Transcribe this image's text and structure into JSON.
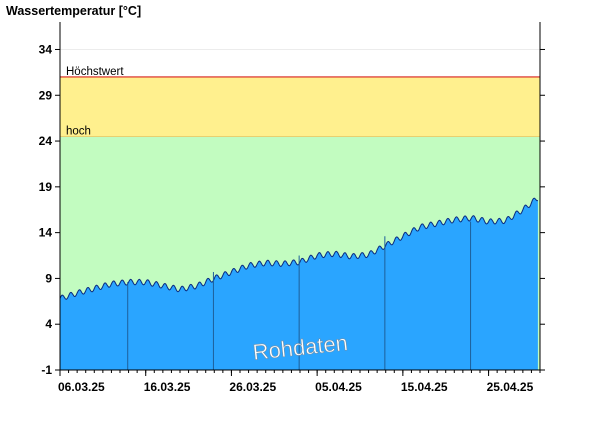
{
  "chart_data": {
    "type": "area",
    "title": "Wassertemperatur [°C]",
    "xlabel": "",
    "ylabel": "",
    "ylim": [
      -1,
      37
    ],
    "yticks": [
      "-1",
      "4",
      "9",
      "14",
      "19",
      "24",
      "29",
      "34"
    ],
    "x_start": "06.03.25",
    "x_end": "01.05.25",
    "xticks": [
      "06.03.25",
      "16.03.25",
      "26.03.25",
      "05.04.25",
      "15.04.25",
      "25.04.25"
    ],
    "watermark": "Rohdaten",
    "grid": false,
    "thresholds": [
      {
        "label": "hoch",
        "value": 24.5,
        "color": "#ffe88a"
      },
      {
        "label": "Höchstwert",
        "value": 31.0,
        "color": "#e03030"
      }
    ],
    "colors": {
      "area_fill": "#2aa5ff",
      "area_line": "#0a2a80",
      "band_normal": "#c2fcc0",
      "band_high": "#fff08e",
      "threshold_line": "#d8201e"
    },
    "series": [
      {
        "x": [
          "06.03.25",
          "08.03.25",
          "10.03.25",
          "12.03.25",
          "14.03.25",
          "16.03.25",
          "18.03.25",
          "20.03.25",
          "22.03.25",
          "24.03.25",
          "26.03.25",
          "28.03.25",
          "30.03.25",
          "01.04.25",
          "03.04.25",
          "05.04.25",
          "07.04.25",
          "09.04.25",
          "11.04.25",
          "13.04.25",
          "15.04.25",
          "17.04.25",
          "19.04.25",
          "21.04.25",
          "23.04.25",
          "25.04.25",
          "27.04.25",
          "29.04.25",
          "01.05.25"
        ],
        "values": [
          6.8,
          7.4,
          7.9,
          8.4,
          8.6,
          8.6,
          8.2,
          7.8,
          8.2,
          9.0,
          9.7,
          10.4,
          10.7,
          10.6,
          10.8,
          11.5,
          11.7,
          11.4,
          11.6,
          12.6,
          13.6,
          14.6,
          15.0,
          15.4,
          15.6,
          15.2,
          15.3,
          16.5,
          18.0
        ]
      }
    ]
  }
}
